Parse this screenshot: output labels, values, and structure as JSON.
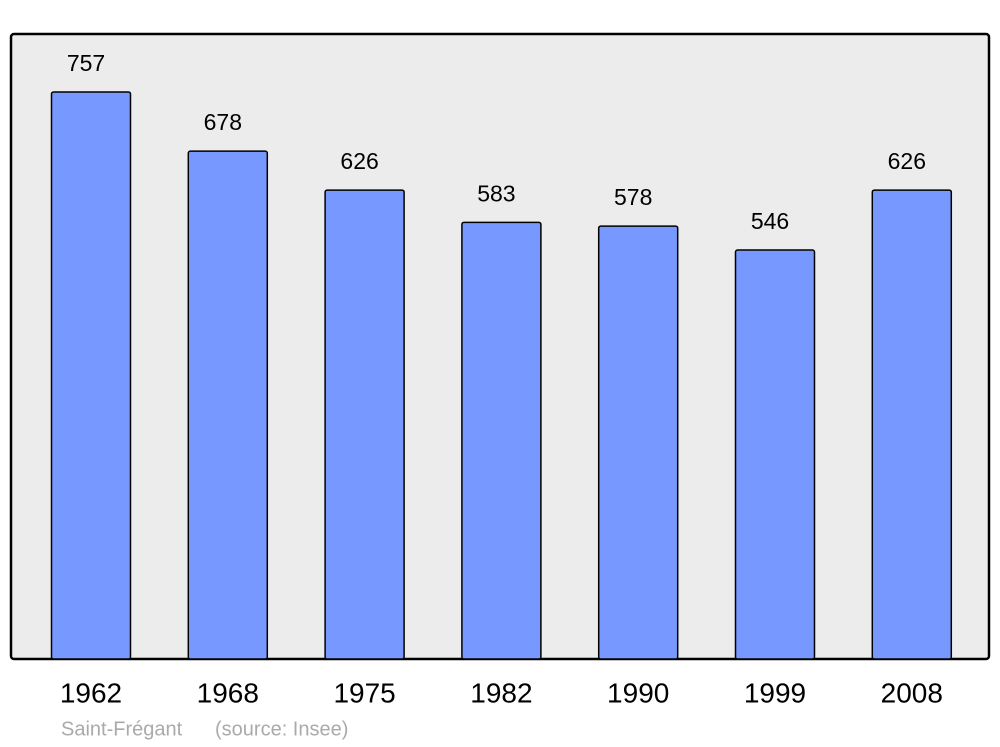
{
  "chart_data": {
    "type": "bar",
    "categories": [
      "1962",
      "1968",
      "1975",
      "1982",
      "1990",
      "1999",
      "2008"
    ],
    "values": [
      757,
      678,
      626,
      583,
      578,
      546,
      626
    ],
    "color": "#7799ff",
    "place": "Saint-Frégant",
    "source": "(source: Insee)"
  }
}
